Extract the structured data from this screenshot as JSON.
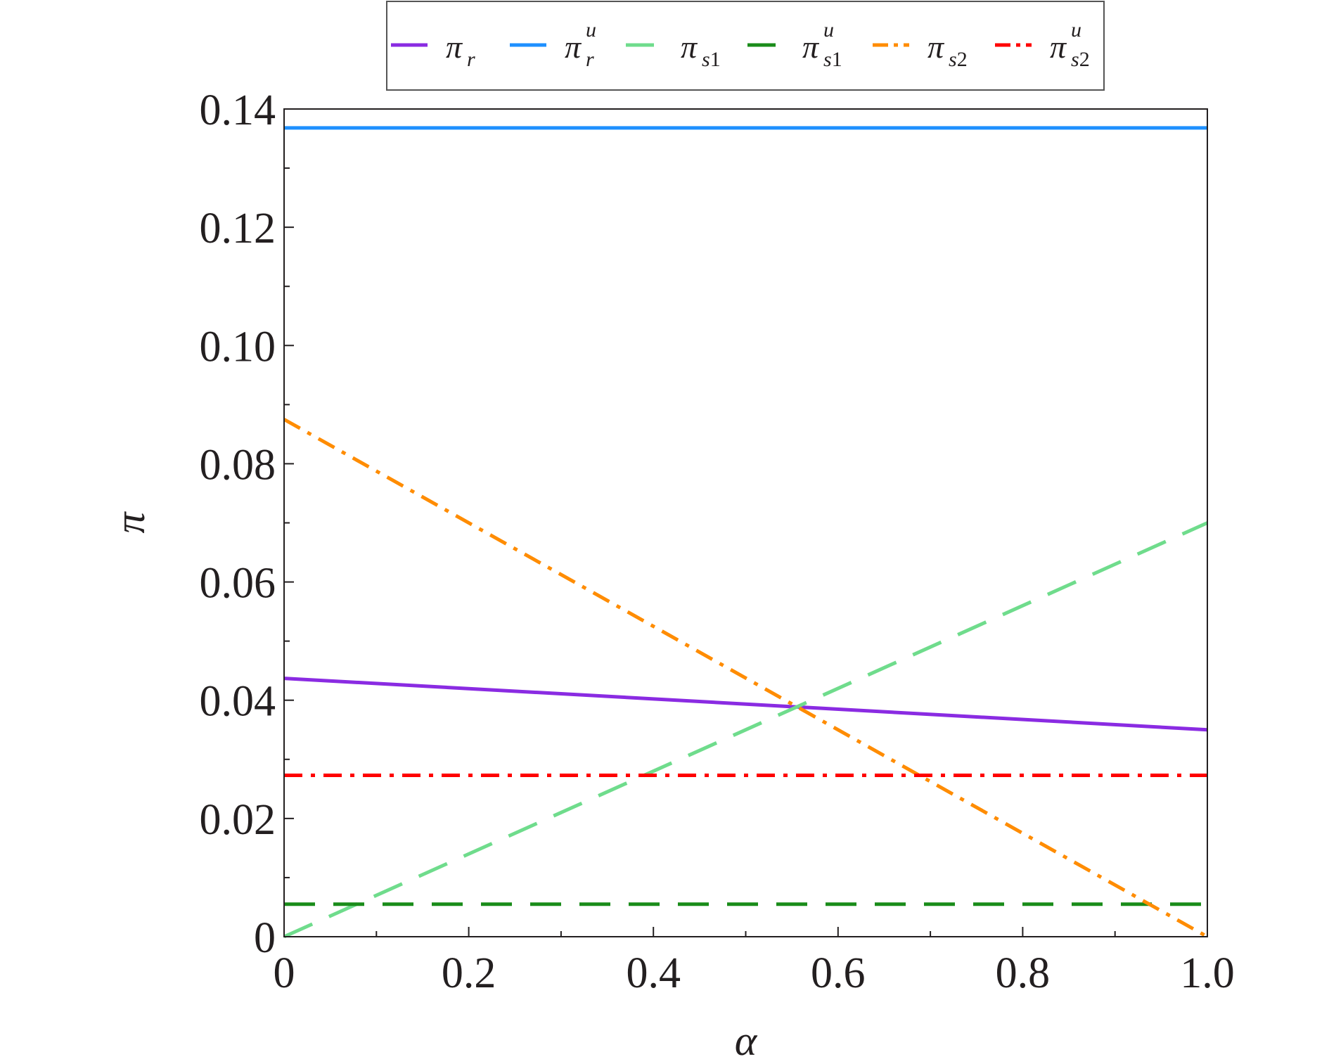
{
  "chart_data": {
    "type": "line",
    "xlabel": "α",
    "ylabel": "π",
    "xlim": [
      0,
      1.0
    ],
    "ylim": [
      0,
      0.14
    ],
    "x_ticks": [
      0,
      0.2,
      0.4,
      0.6,
      0.8,
      1.0
    ],
    "x_tick_labels": [
      "0",
      "0.2",
      "0.4",
      "0.6",
      "0.8",
      "1.0"
    ],
    "y_ticks": [
      0,
      0.02,
      0.04,
      0.06,
      0.08,
      0.1,
      0.12,
      0.14
    ],
    "y_tick_labels": [
      "0",
      "0.02",
      "0.04",
      "0.06",
      "0.08",
      "0.10",
      "0.12",
      "0.14"
    ],
    "grid": false,
    "legend_position": "top",
    "series": [
      {
        "key": "pi_r",
        "label_main": "π",
        "label_sub": "r",
        "label_sub_digit": "",
        "label_sup": "",
        "color": "#8a2be2",
        "style": "solid",
        "x": [
          0,
          1.0
        ],
        "y": [
          0.0437,
          0.035
        ]
      },
      {
        "key": "pi_r_u",
        "label_main": "π",
        "label_sub": "r",
        "label_sub_digit": "",
        "label_sup": "u",
        "color": "#1e90ff",
        "style": "solid",
        "x": [
          0,
          1.0
        ],
        "y": [
          0.1368,
          0.1368
        ]
      },
      {
        "key": "pi_s1",
        "label_main": "π",
        "label_sub": "s",
        "label_sub_digit": "1",
        "label_sup": "",
        "color": "#6fdc8c",
        "style": "dash",
        "x": [
          0,
          1.0
        ],
        "y": [
          0.0,
          0.07
        ]
      },
      {
        "key": "pi_s1_u",
        "label_main": "π",
        "label_sub": "s",
        "label_sub_digit": "1",
        "label_sup": "u",
        "color": "#1a8c1a",
        "style": "dash",
        "x": [
          0,
          1.0
        ],
        "y": [
          0.0055,
          0.0055
        ]
      },
      {
        "key": "pi_s2",
        "label_main": "π",
        "label_sub": "s",
        "label_sub_digit": "2",
        "label_sup": "",
        "color": "#ff8c00",
        "style": "dashdot",
        "x": [
          0,
          1.0
        ],
        "y": [
          0.0875,
          0.0
        ]
      },
      {
        "key": "pi_s2_u",
        "label_main": "π",
        "label_sub": "s",
        "label_sub_digit": "2",
        "label_sup": "u",
        "color": "#ff0000",
        "style": "dashdot",
        "x": [
          0,
          1.0
        ],
        "y": [
          0.0273,
          0.0273
        ]
      }
    ]
  }
}
